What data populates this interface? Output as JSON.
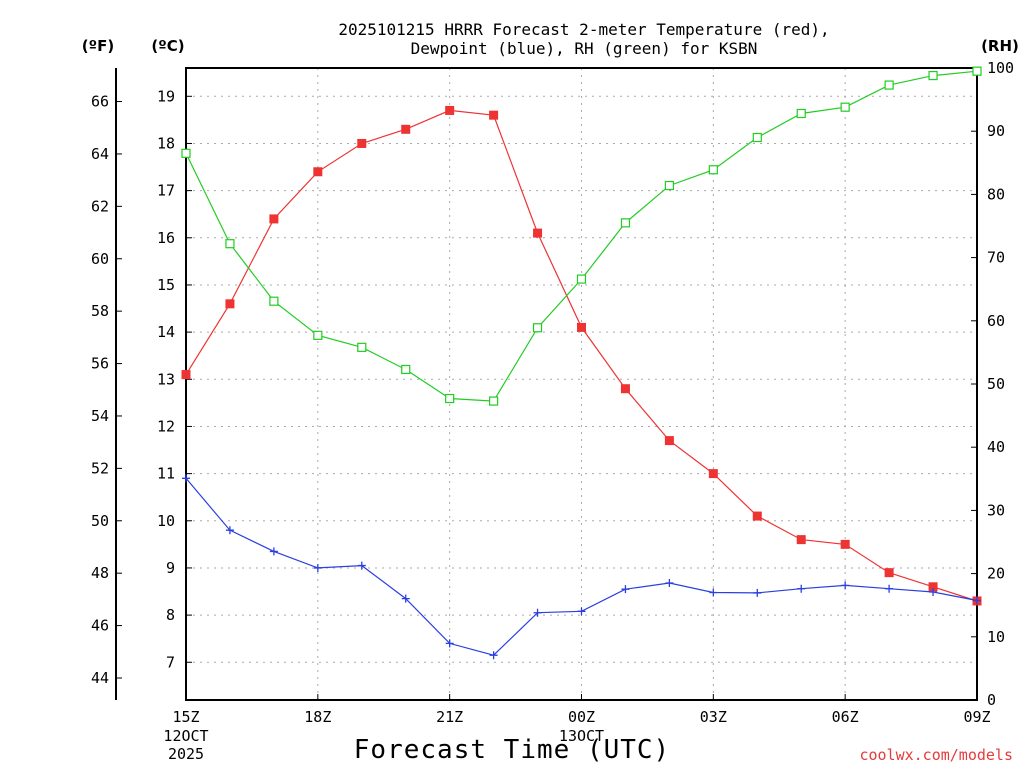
{
  "chart_data": {
    "type": "line",
    "title": [
      "2025101215 HRRR Forecast 2-meter Temperature (red),",
      "Dewpoint (blue), RH (green) for KSBN"
    ],
    "xlabel": "Forecast Time (UTC)",
    "credit": "coolwx.com/models",
    "units": {
      "fahrenheit": "(ºF)",
      "celsius": "(ºC)",
      "rh": "(RH)"
    },
    "x": [
      0,
      1,
      2,
      3,
      4,
      5,
      6,
      7,
      8,
      9,
      10,
      11,
      12,
      13,
      14,
      15,
      16,
      17,
      18
    ],
    "x_ticks": [
      {
        "x": 0,
        "label": "15Z",
        "sub": [
          "12OCT",
          "2025"
        ]
      },
      {
        "x": 3,
        "label": "18Z",
        "sub": []
      },
      {
        "x": 6,
        "label": "21Z",
        "sub": []
      },
      {
        "x": 9,
        "label": "00Z",
        "sub": [
          "13OCT"
        ]
      },
      {
        "x": 12,
        "label": "03Z",
        "sub": []
      },
      {
        "x": 15,
        "label": "06Z",
        "sub": []
      },
      {
        "x": 18,
        "label": "09Z",
        "sub": []
      }
    ],
    "celsius_axis": {
      "ylim": [
        6.2,
        19.6
      ],
      "ticks": [
        "7",
        "8",
        "9",
        "10",
        "11",
        "12",
        "13",
        "14",
        "15",
        "16",
        "17",
        "18",
        "19"
      ]
    },
    "fahrenheit_axis": {
      "ylim": [
        43.16,
        67.28
      ],
      "ticks": [
        "44",
        "46",
        "48",
        "50",
        "52",
        "54",
        "56",
        "58",
        "60",
        "62",
        "64",
        "66"
      ]
    },
    "rh_axis": {
      "ylim": [
        0,
        100
      ],
      "ticks": [
        "0",
        "10",
        "20",
        "30",
        "40",
        "50",
        "60",
        "70",
        "80",
        "90",
        "100"
      ]
    },
    "series": [
      {
        "name": "2-meter Temperature",
        "color": "#ee3333",
        "marker": "filled-square",
        "axis": "celsius",
        "values": [
          13.1,
          14.6,
          16.4,
          17.4,
          18.0,
          18.3,
          18.7,
          18.6,
          16.1,
          14.1,
          12.8,
          11.7,
          11.0,
          10.1,
          9.6,
          9.5,
          8.9,
          8.6,
          8.3
        ]
      },
      {
        "name": "Dewpoint",
        "color": "#2a3fe0",
        "marker": "plus",
        "axis": "celsius",
        "values": [
          10.9,
          9.8,
          9.35,
          9.0,
          9.05,
          8.35,
          7.4,
          7.15,
          8.05,
          8.08,
          8.55,
          8.68,
          8.48,
          8.47,
          8.56,
          8.63,
          8.56,
          8.49,
          8.31
        ]
      },
      {
        "name": "RH",
        "color": "#22cc22",
        "marker": "open-square",
        "axis": "rh",
        "values": [
          86.5,
          72.2,
          63.1,
          57.7,
          55.8,
          52.3,
          47.7,
          47.3,
          58.9,
          66.6,
          75.5,
          81.4,
          83.9,
          89.0,
          92.8,
          93.8,
          97.3,
          98.8,
          99.5
        ]
      }
    ],
    "grid": true
  }
}
